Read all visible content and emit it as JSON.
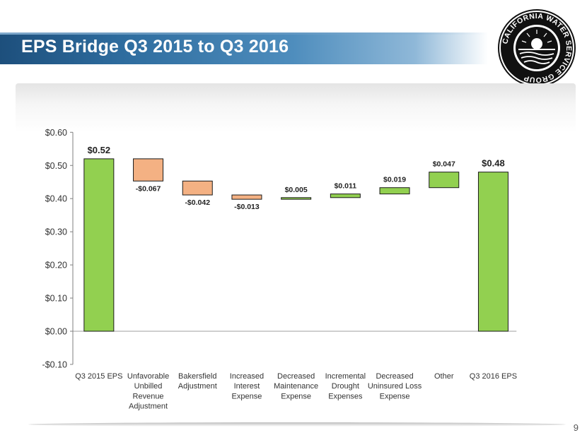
{
  "header": {
    "title": "EPS Bridge Q3 2015 to Q3 2016"
  },
  "logo": {
    "text": "CALIFORNIA WATER SERVICE GROUP",
    "icon": "sun-water-seal-icon"
  },
  "footer": {
    "page_number": "9"
  },
  "colors": {
    "positive": "#92d050",
    "negative": "#f4b183",
    "outline": "#1a1a1a",
    "title_band": "#1d4f7c"
  },
  "chart_data": {
    "type": "bar",
    "subtype": "waterfall",
    "categories": [
      "Q3 2015 EPS",
      "Unfavorable Unbilled Revenue Adjustment",
      "Bakersfield Adjustment",
      "Increased Interest Expense",
      "Decreased Maintenance Expense",
      "Incremental Drought Expenses",
      "Decreased Uninsured Loss Expense",
      "Other",
      "Q3 2016 EPS"
    ],
    "values": [
      0.52,
      -0.067,
      -0.042,
      -0.013,
      0.005,
      0.011,
      0.019,
      0.047,
      0.48
    ],
    "kinds": [
      "total",
      "delta",
      "delta",
      "delta",
      "delta",
      "delta",
      "delta",
      "delta",
      "total"
    ],
    "data_labels": [
      "$0.52",
      "-$0.067",
      "-$0.042",
      "-$0.013",
      "$0.005",
      "$0.011",
      "$0.019",
      "$0.047",
      "$0.48"
    ],
    "yticks": [
      -0.1,
      0.0,
      0.1,
      0.2,
      0.3,
      0.4,
      0.5,
      0.6
    ],
    "ytick_labels": [
      "-$0.10",
      "$0.00",
      "$0.10",
      "$0.20",
      "$0.30",
      "$0.40",
      "$0.50",
      "$0.60"
    ],
    "ylim": [
      -0.1,
      0.6
    ],
    "grid": false,
    "legend": "none",
    "title": "",
    "xlabel": "",
    "ylabel": ""
  }
}
